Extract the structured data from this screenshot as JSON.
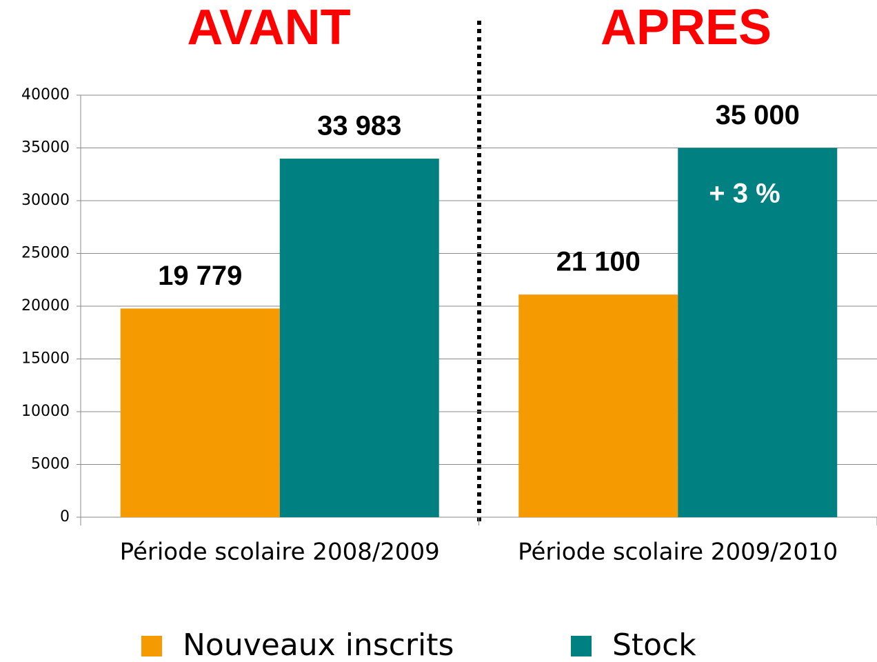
{
  "chart_data": {
    "type": "bar",
    "categories": [
      "Période scolaire 2008/2009",
      "Période scolaire 2009/2010"
    ],
    "series": [
      {
        "name": "Nouveaux inscrits",
        "color": "#f59a00",
        "values": [
          19779,
          21100
        ],
        "value_labels": [
          "19 779",
          "21 100"
        ]
      },
      {
        "name": "Stock",
        "color": "#008080",
        "values": [
          33983,
          35000
        ],
        "value_labels": [
          "33 983",
          "35 000"
        ]
      }
    ],
    "annotations": [
      "AVANT",
      "APRES",
      "+ 3 %"
    ],
    "ylim": [
      0,
      40000
    ],
    "yticks": [
      0,
      5000,
      10000,
      15000,
      20000,
      25000,
      30000,
      35000,
      40000
    ],
    "grid": true,
    "legend": "bottom"
  }
}
